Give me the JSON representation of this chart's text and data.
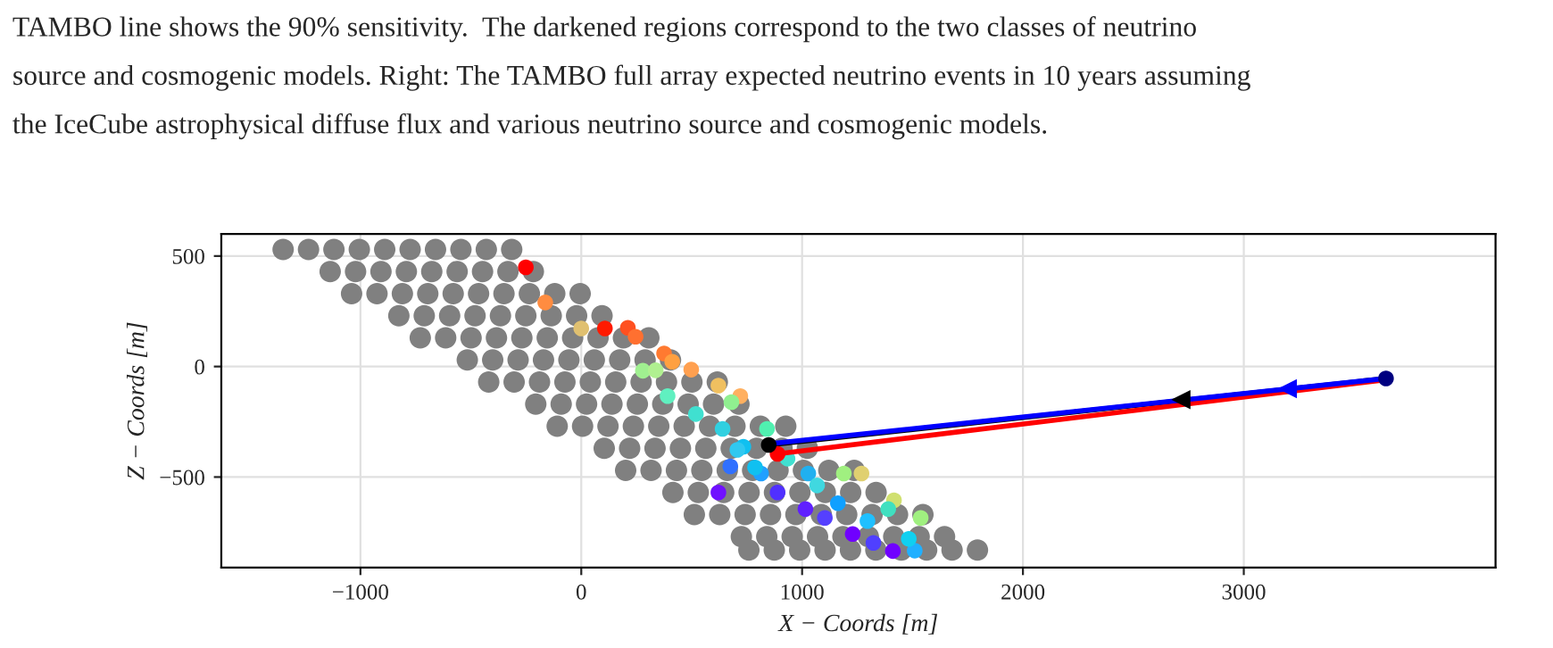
{
  "chart_data": {
    "type": "scatter",
    "annotations": [
      "TAMBO line shows the 90% sensitivity.  The darkened regions correspond to the two classes of neutrino",
      "source and cosmogenic models. Right: The TAMBO full array expected neutrino events in 10 years assuming",
      "the IceCube astrophysical diffuse flux and various neutrino source and cosmogenic models."
    ],
    "xlabel": "X − Coords [m]",
    "ylabel": "Z − Coords [m]",
    "xlim": [
      -1630,
      4140
    ],
    "ylim": [
      -910,
      600
    ],
    "xticks": [
      {
        "value": -1000,
        "label": "−1000"
      },
      0,
      1000,
      2000,
      3000
    ],
    "yticks": [
      {
        "value": -500,
        "label": "−500"
      },
      0,
      500
    ],
    "grid": true,
    "legend": false,
    "series": [
      {
        "marker": "circle",
        "color": "#808080",
        "x": [
          -1350,
          -1235,
          -1120,
          -1005,
          -890,
          -775,
          -660,
          -545,
          -430,
          -315,
          -1137,
          -1022,
          -907,
          -792,
          -677,
          -562,
          -447,
          -332,
          -217,
          -1040,
          -925,
          -810,
          -695,
          -580,
          -465,
          -350,
          -235,
          -120,
          -5,
          -826,
          -711,
          -596,
          -481,
          -366,
          -251,
          -136,
          -21,
          94,
          -729,
          -614,
          -499,
          -384,
          -269,
          -154,
          -39,
          76,
          191,
          306,
          -516,
          -401,
          -286,
          -171,
          -56,
          59,
          174,
          289,
          404,
          -419,
          -304,
          -189,
          -74,
          41,
          156,
          271,
          386,
          501,
          616,
          -206,
          -91,
          24,
          139,
          254,
          369,
          484,
          599,
          714,
          -109,
          6,
          121,
          236,
          351,
          466,
          581,
          696,
          811,
          926,
          104,
          219,
          334,
          449,
          564,
          679,
          794,
          909,
          1024,
          201,
          316,
          431,
          546,
          661,
          776,
          891,
          1006,
          1121,
          1236,
          415,
          530,
          645,
          760,
          875,
          990,
          1105,
          1220,
          1335,
          512,
          627,
          742,
          857,
          972,
          1087,
          1202,
          1317,
          1432,
          1547,
          725,
          840,
          955,
          1070,
          1185,
          1300,
          1415,
          1530,
          1645,
          759,
          874,
          989,
          1104,
          1219,
          1334,
          1449,
          1564,
          1679,
          1794
        ],
        "values": [
          530,
          530,
          530,
          530,
          530,
          530,
          530,
          530,
          530,
          530,
          430,
          430,
          430,
          430,
          430,
          430,
          430,
          430,
          430,
          330,
          330,
          330,
          330,
          330,
          330,
          330,
          330,
          330,
          330,
          230,
          230,
          230,
          230,
          230,
          230,
          230,
          230,
          230,
          130,
          130,
          130,
          130,
          130,
          130,
          130,
          130,
          130,
          130,
          30,
          30,
          30,
          30,
          30,
          30,
          30,
          30,
          30,
          -70,
          -70,
          -70,
          -70,
          -70,
          -70,
          -70,
          -70,
          -70,
          -70,
          -170,
          -170,
          -170,
          -170,
          -170,
          -170,
          -170,
          -170,
          -170,
          -270,
          -270,
          -270,
          -270,
          -270,
          -270,
          -270,
          -270,
          -270,
          -270,
          -370,
          -370,
          -370,
          -370,
          -370,
          -370,
          -370,
          -370,
          -370,
          -470,
          -470,
          -470,
          -470,
          -470,
          -470,
          -470,
          -470,
          -470,
          -470,
          -570,
          -570,
          -570,
          -570,
          -570,
          -570,
          -570,
          -570,
          -570,
          -670,
          -670,
          -670,
          -670,
          -670,
          -670,
          -670,
          -670,
          -670,
          -670,
          -770,
          -770,
          -770,
          -770,
          -770,
          -770,
          -770,
          -770,
          -770,
          -830,
          -830,
          -830,
          -830,
          -830,
          -830,
          -830,
          -830,
          -830,
          -830
        ]
      },
      {
        "marker": "circle",
        "x": [
          -251,
          -163,
          0,
          107,
          211,
          246,
          375,
          412,
          279,
          337,
          391,
          498,
          621,
          720,
          519,
          640,
          734,
          675,
          621,
          889,
          814,
          1015,
          1103,
          1229,
          841,
          1189,
          1269,
          1416,
          1537,
          1390,
          1323,
          1411,
          1510,
          787,
          1028,
          1162,
          1296,
          1483,
          934,
          1068,
          707,
          680
        ],
        "values": [
          449,
          290,
          172,
          172,
          175,
          135,
          59,
          22,
          -19,
          -17,
          -134,
          -14,
          -86,
          -134,
          -215,
          -282,
          -363,
          -452,
          -570,
          -570,
          -484,
          -645,
          -685,
          -758,
          -282,
          -484,
          -484,
          -605,
          -685,
          -645,
          -798,
          -835,
          -833,
          -457,
          -484,
          -618,
          -699,
          -780,
          -417,
          -538,
          -377,
          -161
        ],
        "colors": [
          "#ff0000",
          "#ff8c40",
          "#e0c070",
          "#ff1a00",
          "#ff5020",
          "#ff7030",
          "#ff7a30",
          "#ffa040",
          "#a0f090",
          "#b0f090",
          "#60f0c0",
          "#ffa050",
          "#f0c060",
          "#ffb060",
          "#40e0d0",
          "#30d0e0",
          "#10c0f0",
          "#3070ff",
          "#7010ff",
          "#5030ff",
          "#20a0ff",
          "#6020ff",
          "#5540ff",
          "#7000ff",
          "#50f0b0",
          "#a0f080",
          "#e0d070",
          "#d0e070",
          "#a0f080",
          "#40e0c0",
          "#5040ff",
          "#7000ff",
          "#20b0ff",
          "#10c0f0",
          "#20b0f0",
          "#10a0ff",
          "#20c0ff",
          "#10d0f0",
          "#40e0d0",
          "#40d8e0",
          "#30c8f0",
          "#90f090"
        ]
      },
      {
        "type": "line",
        "marker": "none",
        "color": "#000000",
        "x": [
          849,
          3644
        ],
        "values": [
          -355,
          -54
        ]
      },
      {
        "type": "line",
        "marker": "none",
        "color": "#ff0000",
        "x": [
          889,
          3644
        ],
        "values": [
          -395,
          -60
        ]
      },
      {
        "type": "line",
        "marker": "none",
        "color": "#0000ff",
        "x": [
          849,
          3644
        ],
        "values": [
          -350,
          -54
        ]
      },
      {
        "type": "scatter",
        "marker": "triangle",
        "color": "#000000",
        "x": [
          2715
        ],
        "values": [
          -150
        ]
      },
      {
        "type": "scatter",
        "marker": "triangle",
        "color": "#0000ff",
        "x": [
          3197
        ],
        "values": [
          -100
        ]
      },
      {
        "type": "scatter",
        "marker": "circle",
        "color": "#ff0000",
        "x": [
          889
        ],
        "values": [
          -395
        ]
      },
      {
        "type": "scatter",
        "marker": "circle",
        "color": "#000000",
        "x": [
          849
        ],
        "values": [
          -355
        ]
      },
      {
        "type": "scatter",
        "marker": "circle",
        "color": "#000080",
        "x": [
          3644
        ],
        "values": [
          -54
        ]
      }
    ]
  }
}
